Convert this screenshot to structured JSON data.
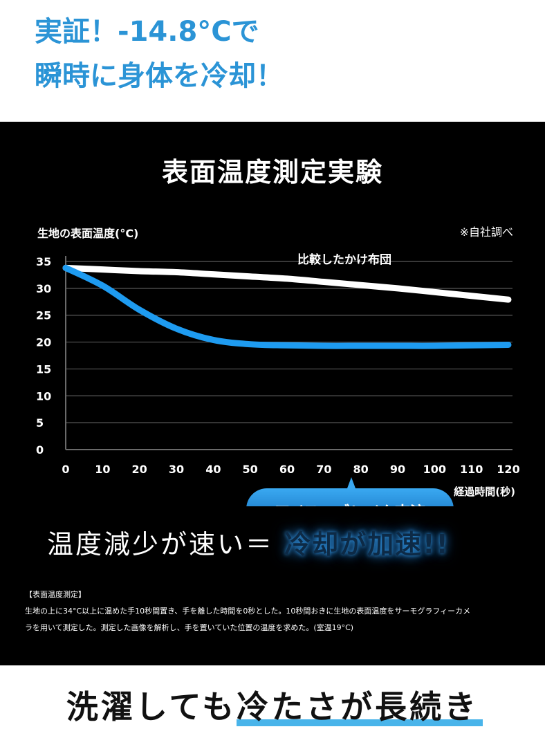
{
  "headline": {
    "line1": "実証！-14.8°Cで",
    "line2": "瞬時に身体を冷却！"
  },
  "colors": {
    "headline": "#2b94d6",
    "comparison_line": "#ffffff",
    "product_line": "#1e9bf0",
    "underline": "#49b4ea"
  },
  "panel": {
    "title": "表面温度測定実験",
    "source_note": "※自社調べ",
    "tagline_plain": "温度減少が速い＝",
    "tagline_accent": "冷却が加速!!",
    "note_heading": "【表面温度測定】",
    "note_line1": "生地の上に34°C以上に温めた手10秒間置き、手を離した時間を0秒とした。10秒間おきに生地の表面温度をサーモグラフィーカメ",
    "note_line2": "ラを用いて測定した。測定した画像を解析し、手を置いていた位置の温度を求めた。(室温19°C)"
  },
  "chart_data": {
    "type": "line",
    "ylabel": "生地の表面温度(°C)",
    "xlabel": "経過時間(秒)",
    "x": [
      0,
      10,
      20,
      30,
      40,
      50,
      60,
      70,
      80,
      90,
      100,
      110,
      120
    ],
    "xticks": [
      "0",
      "10",
      "20",
      "30",
      "40",
      "50",
      "60",
      "70",
      "80",
      "90",
      "100",
      "110",
      "120"
    ],
    "yticks": [
      "0",
      "5",
      "10",
      "15",
      "20",
      "25",
      "30",
      "35"
    ],
    "xlim": [
      0,
      120
    ],
    "ylim": [
      0,
      35
    ],
    "grid": "horizontal",
    "series": [
      {
        "name": "比較したかけ布団",
        "values": [
          33.8,
          33.5,
          33.2,
          33.0,
          32.6,
          32.2,
          31.8,
          31.2,
          30.6,
          30.0,
          29.3,
          28.6,
          27.9
        ]
      },
      {
        "name": "アイス・ブレイク爽涼",
        "values": [
          33.8,
          30.5,
          26.0,
          22.5,
          20.4,
          19.6,
          19.4,
          19.3,
          19.3,
          19.3,
          19.3,
          19.4,
          19.5
        ]
      }
    ]
  },
  "footer": {
    "prefix": "洗濯しても",
    "highlight": "冷たさが長続き"
  }
}
